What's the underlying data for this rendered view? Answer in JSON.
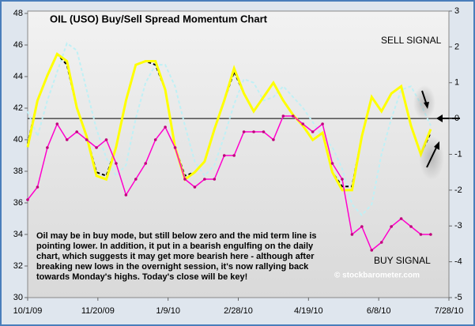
{
  "chart_data": {
    "type": "line",
    "title": "OIL (USO) Buy/Sell Spread Momentum Chart",
    "annotations": [
      "SELL SIGNAL",
      "BUY SIGNAL",
      "© stockbarometer.com",
      "Oil may be in buy mode, but still below zero and the mid term line is pointing lower.  In addition, it put in a bearish engulfing on the daily chart, which suggests it may get more bearish here - although after breaking new lows in the overnight session, it's now rallying back towards Monday's highs.  Today's close will be key!"
    ],
    "x": [
      "10/1/09",
      "10/8/09",
      "10/15/09",
      "10/22/09",
      "10/29/09",
      "11/5/09",
      "11/12/09",
      "11/19/09",
      "11/26/09",
      "12/3/09",
      "12/10/09",
      "12/17/09",
      "12/24/09",
      "12/31/09",
      "1/7/10",
      "1/14/10",
      "1/21/10",
      "1/28/10",
      "2/4/10",
      "2/11/10",
      "2/18/10",
      "2/25/10",
      "3/4/10",
      "3/11/10",
      "3/18/10",
      "3/25/10",
      "4/1/10",
      "4/8/10",
      "4/15/10",
      "4/22/10",
      "4/29/10",
      "5/6/10",
      "5/13/10",
      "5/20/10",
      "5/27/10",
      "6/3/10",
      "6/10/10",
      "6/17/10",
      "6/24/10",
      "7/1/10",
      "7/8/10",
      "7/15/10"
    ],
    "series": [
      {
        "color": "#ff00cc",
        "axis": "y",
        "markers": true,
        "values": [
          36.2,
          37,
          39.5,
          41,
          40,
          40.5,
          40,
          39.5,
          40,
          38.5,
          36.5,
          37.5,
          38.5,
          40,
          40.8,
          39.5,
          37.5,
          37,
          37.5,
          37.5,
          39,
          39,
          40.5,
          40.5,
          40.5,
          40,
          41.5,
          41.5,
          41,
          40.5,
          41,
          38.5,
          37.5,
          34,
          34.5,
          33,
          33.5,
          34.5,
          35,
          34.5,
          34,
          34
        ]
      },
      {
        "color": "#ffff00",
        "axis": "y2",
        "width": 3,
        "values": [
          -0.8,
          0.5,
          1.2,
          1.8,
          1.6,
          0.3,
          -0.5,
          -1.6,
          -1.7,
          -0.8,
          0.5,
          1.5,
          1.6,
          1.6,
          0.8,
          -0.8,
          -1.7,
          -1.5,
          -1.2,
          -0.3,
          0.5,
          1.4,
          0.7,
          0.2,
          0.6,
          1.0,
          0.5,
          0.1,
          -0.2,
          -0.6,
          -0.4,
          -1.5,
          -2.0,
          -2.0,
          -0.5,
          0.6,
          0.2,
          0.7,
          0.9,
          -0.2,
          -1.0,
          -0.3
        ]
      },
      {
        "color": "#000000",
        "axis": "y2",
        "width": 2,
        "dash": true,
        "values": [
          -0.7,
          0.5,
          1.2,
          1.8,
          1.5,
          0.3,
          -0.5,
          -1.5,
          -1.6,
          -0.8,
          0.5,
          1.5,
          1.6,
          1.5,
          0.8,
          -0.8,
          -1.6,
          -1.5,
          -1.2,
          -0.3,
          0.5,
          1.3,
          0.7,
          0.2,
          0.6,
          1.0,
          0.5,
          0.1,
          -0.2,
          -0.6,
          -0.4,
          -1.5,
          -1.9,
          -1.9,
          -0.5,
          0.6,
          0.2,
          0.7,
          0.9,
          -0.2,
          -1.0,
          -0.4
        ]
      },
      {
        "color": "#bff0f5",
        "axis": "y2",
        "width": 2,
        "dash": true,
        "values": [
          0.2,
          -0.5,
          0.5,
          1.3,
          2.1,
          1.9,
          0.8,
          -0.3,
          -1.1,
          -1.6,
          -1.3,
          0.0,
          1.0,
          1.5,
          1.5,
          0.9,
          -0.2,
          -1.2,
          -1.6,
          -1.3,
          -0.5,
          0.4,
          1.1,
          1.0,
          0.5,
          0.6,
          0.9,
          0.6,
          0.3,
          -0.1,
          -0.5,
          -0.8,
          -1.4,
          -2.4,
          -2.7,
          -2.4,
          -1.0,
          0.0,
          0.8,
          0.9,
          0.4,
          -0.2
        ]
      }
    ],
    "xlim": [
      "10/1/09",
      "7/28/10"
    ],
    "xticks": [
      "10/1/09",
      "11/20/09",
      "1/9/10",
      "2/28/10",
      "4/19/10",
      "6/8/10",
      "7/28/10"
    ],
    "ylim": [
      30,
      48.15
    ],
    "yticks": [
      30,
      32,
      34,
      36,
      38,
      40,
      42,
      44,
      46,
      48
    ],
    "y2lim": [
      -5,
      3
    ],
    "y2ticks": [
      -5,
      -4,
      -3,
      -2,
      -1,
      0,
      1,
      2,
      3
    ],
    "zero_line": true
  }
}
